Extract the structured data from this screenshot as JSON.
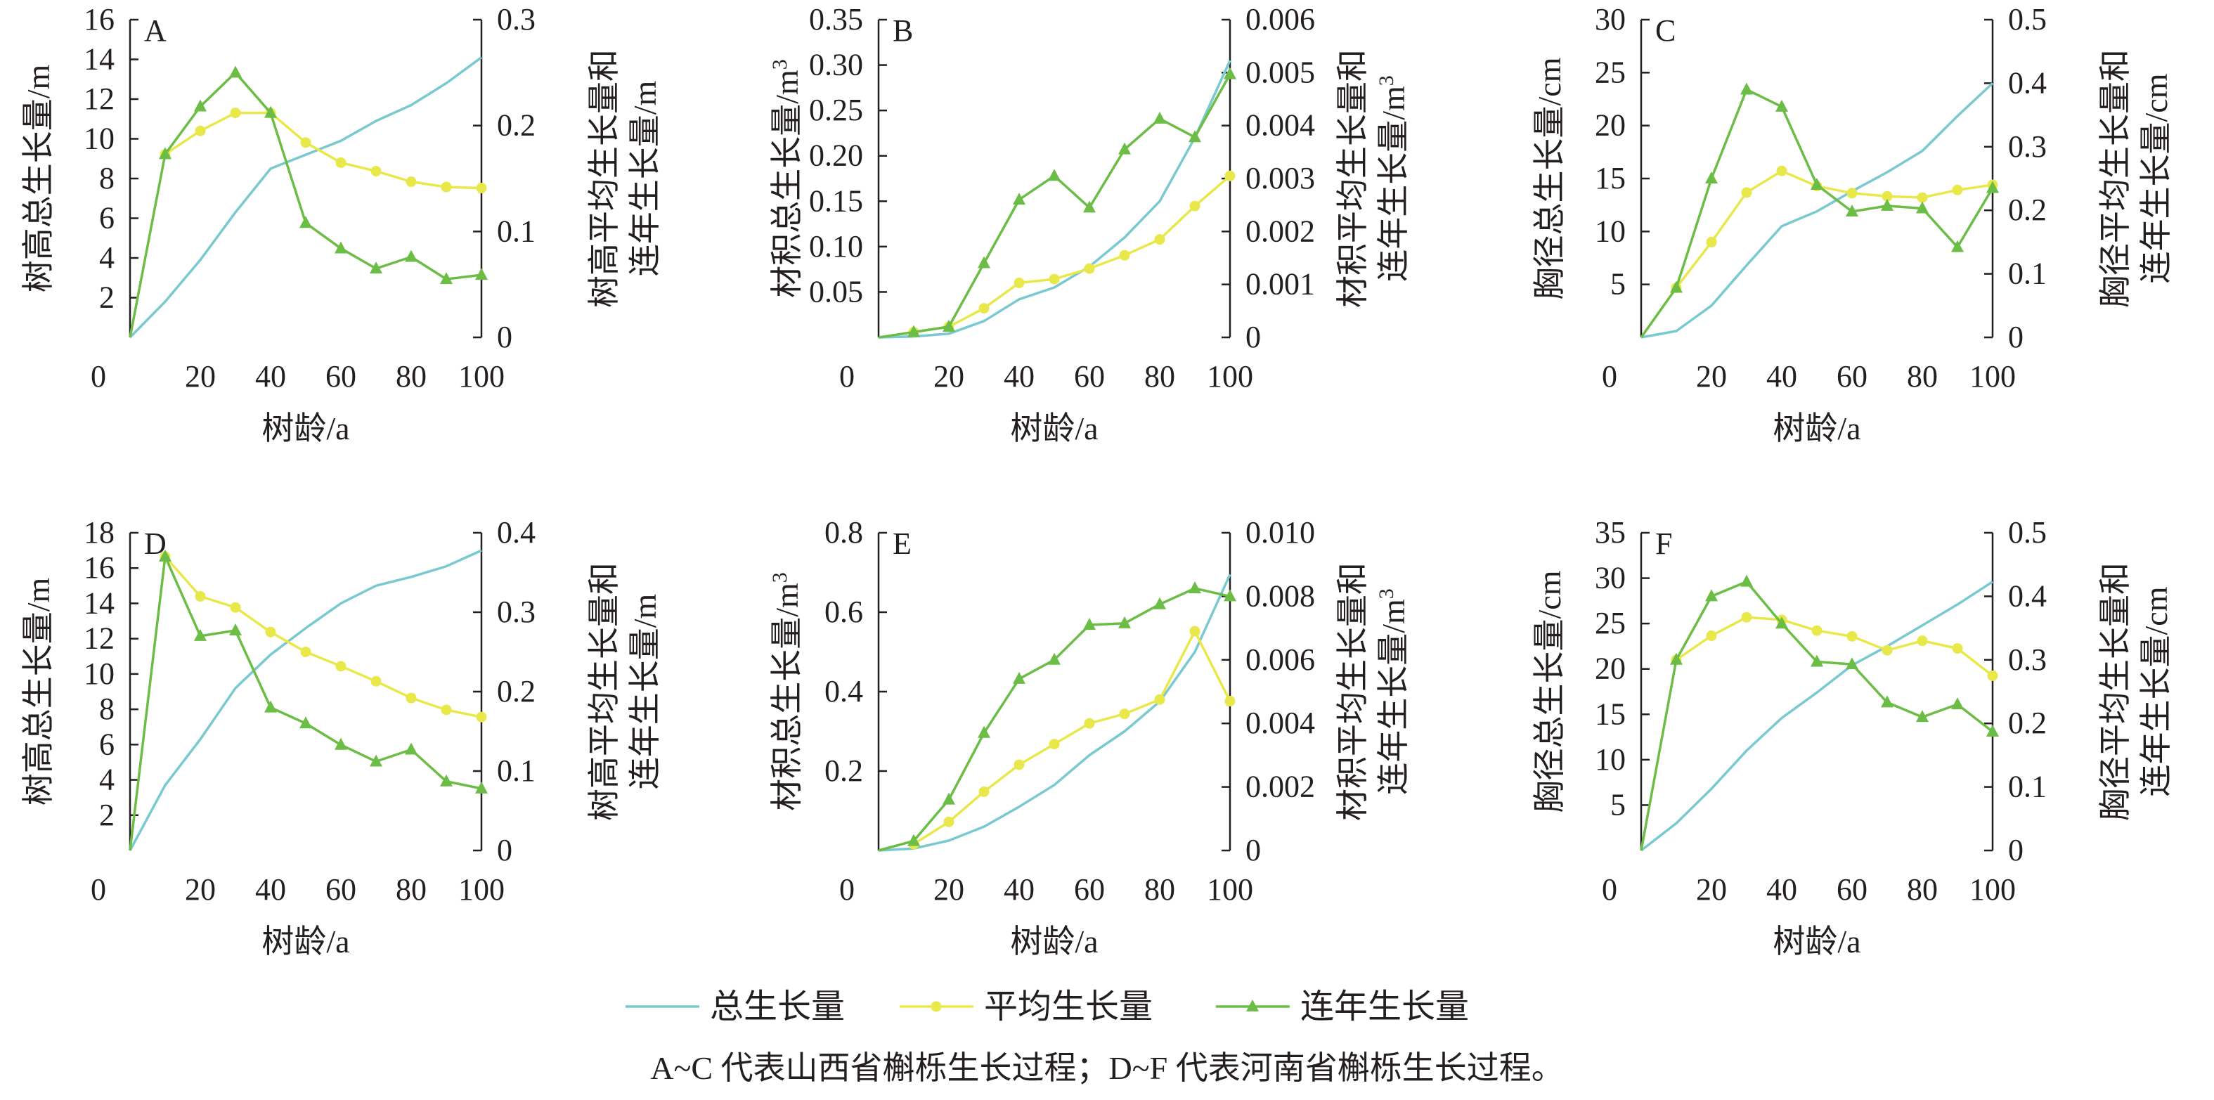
{
  "figure": {
    "caption": "A~C 代表山西省槲栎生长过程；D~F 代表河南省槲栎生长过程。",
    "legend": [
      {
        "key": "total",
        "label": "总生长量",
        "color": "#79c9d0",
        "marker": "none"
      },
      {
        "key": "mean",
        "label": "平均生长量",
        "color": "#e8e84a",
        "marker": "circle"
      },
      {
        "key": "annual",
        "label": "连年生长量",
        "color": "#6bbd45",
        "marker": "triangle"
      }
    ]
  },
  "chart_data": [
    {
      "panel": "A",
      "type": "line",
      "x_label": "树龄/a",
      "x_range": [
        0,
        100
      ],
      "x_ticks": [
        0,
        20,
        40,
        60,
        80,
        100
      ],
      "left_axis": {
        "label": "树高总生长量/m",
        "range": [
          0,
          16
        ],
        "ticks": [
          2,
          4,
          6,
          8,
          10,
          12,
          14,
          16
        ],
        "tick_labels": [
          "2",
          "4",
          "6",
          "8",
          "10",
          "12",
          "14",
          "16"
        ]
      },
      "right_axis": {
        "label_lines": [
          "树高平均生长量和",
          "连年生长量/m"
        ],
        "range": [
          0,
          0.3
        ],
        "ticks": [
          0,
          0.1,
          0.2,
          0.3
        ],
        "tick_labels": [
          "0",
          "0.1",
          "0.2",
          "0.3"
        ]
      },
      "series": [
        {
          "key": "total",
          "name": "总生长量",
          "axis": "left",
          "x": [
            0,
            10,
            20,
            30,
            40,
            50,
            60,
            70,
            80,
            90,
            100
          ],
          "y": [
            0,
            1.8,
            3.9,
            6.3,
            8.5,
            9.2,
            9.9,
            10.9,
            11.7,
            12.8,
            14.1
          ]
        },
        {
          "key": "mean",
          "name": "平均生长量",
          "axis": "right",
          "x": [
            10,
            20,
            30,
            40,
            50,
            60,
            70,
            80,
            90,
            100
          ],
          "y": [
            0.173,
            0.195,
            0.212,
            0.212,
            0.184,
            0.165,
            0.157,
            0.147,
            0.142,
            0.141
          ]
        },
        {
          "key": "annual",
          "name": "连年生长量",
          "axis": "right",
          "x": [
            0,
            10,
            20,
            30,
            40,
            50,
            60,
            70,
            80,
            90,
            100
          ],
          "y": [
            0,
            0.173,
            0.218,
            0.25,
            0.212,
            0.108,
            0.084,
            0.065,
            0.076,
            0.055,
            0.059
          ]
        }
      ]
    },
    {
      "panel": "B",
      "type": "line",
      "x_label": "树龄/a",
      "x_range": [
        0,
        100
      ],
      "x_ticks": [
        0,
        20,
        40,
        60,
        80,
        100
      ],
      "left_axis": {
        "label": "材积总生长量/m",
        "label_superscript": "3",
        "range": [
          0,
          0.35
        ],
        "ticks": [
          0.05,
          0.1,
          0.15,
          0.2,
          0.25,
          0.3,
          0.35
        ],
        "tick_labels": [
          "0.05",
          "0.10",
          "0.15",
          "0.20",
          "0.25",
          "0.30",
          "0.35"
        ]
      },
      "right_axis": {
        "label_lines": [
          "材积平均生长量和",
          "连年生长量/m"
        ],
        "label_superscript": "3",
        "range": [
          0,
          0.006
        ],
        "ticks": [
          0,
          0.001,
          0.002,
          0.003,
          0.004,
          0.005,
          0.006
        ],
        "tick_labels": [
          "0",
          "0.001",
          "0.002",
          "0.003",
          "0.004",
          "0.005",
          "0.006"
        ]
      },
      "series": [
        {
          "key": "total",
          "name": "总生长量",
          "axis": "left",
          "x": [
            0,
            10,
            20,
            30,
            40,
            50,
            60,
            70,
            80,
            90,
            100
          ],
          "y": [
            0,
            0.001,
            0.004,
            0.018,
            0.042,
            0.055,
            0.078,
            0.11,
            0.15,
            0.22,
            0.305
          ]
        },
        {
          "key": "mean",
          "name": "平均生长量",
          "axis": "right",
          "x": [
            10,
            20,
            30,
            40,
            50,
            60,
            70,
            80,
            90,
            100
          ],
          "y": [
            0.0001,
            0.0002,
            0.00055,
            0.00103,
            0.0011,
            0.0013,
            0.00155,
            0.00185,
            0.00248,
            0.00305
          ]
        },
        {
          "key": "annual",
          "name": "连年生长量",
          "axis": "right",
          "x": [
            0,
            10,
            20,
            30,
            40,
            50,
            60,
            70,
            80,
            90,
            100
          ],
          "y": [
            0,
            0.0001,
            0.0002,
            0.0014,
            0.0026,
            0.00305,
            0.00245,
            0.00355,
            0.00413,
            0.00378,
            0.00497
          ]
        }
      ]
    },
    {
      "panel": "C",
      "type": "line",
      "x_label": "树龄/a",
      "x_range": [
        0,
        100
      ],
      "x_ticks": [
        0,
        20,
        40,
        60,
        80,
        100
      ],
      "left_axis": {
        "label": "胸径总生长量/cm",
        "range": [
          0,
          30
        ],
        "ticks": [
          5,
          10,
          15,
          20,
          25,
          30
        ],
        "tick_labels": [
          "5",
          "10",
          "15",
          "20",
          "25",
          "30"
        ]
      },
      "right_axis": {
        "label_lines": [
          "胸径平均生长量和",
          "连年生长量/cm"
        ],
        "range": [
          0,
          0.5
        ],
        "ticks": [
          0,
          0.1,
          0.2,
          0.3,
          0.4,
          0.5
        ],
        "tick_labels": [
          "0",
          "0.1",
          "0.2",
          "0.3",
          "0.4",
          "0.5"
        ]
      },
      "series": [
        {
          "key": "total",
          "name": "总生长量",
          "axis": "left",
          "x": [
            0,
            10,
            20,
            30,
            40,
            50,
            60,
            70,
            80,
            90,
            100
          ],
          "y": [
            0,
            0.6,
            3,
            6.8,
            10.5,
            11.9,
            13.8,
            15.6,
            17.6,
            20.9,
            24
          ]
        },
        {
          "key": "mean",
          "name": "平均生长量",
          "axis": "right",
          "x": [
            10,
            20,
            30,
            40,
            50,
            60,
            70,
            80,
            90,
            100
          ],
          "y": [
            0.078,
            0.15,
            0.228,
            0.262,
            0.238,
            0.227,
            0.222,
            0.22,
            0.232,
            0.24
          ]
        },
        {
          "key": "annual",
          "name": "连年生长量",
          "axis": "right",
          "x": [
            0,
            10,
            20,
            30,
            40,
            50,
            60,
            70,
            80,
            90,
            100
          ],
          "y": [
            0,
            0.078,
            0.25,
            0.39,
            0.363,
            0.24,
            0.198,
            0.207,
            0.203,
            0.142,
            0.235
          ]
        }
      ]
    },
    {
      "panel": "D",
      "type": "line",
      "x_label": "树龄/a",
      "x_range": [
        0,
        100
      ],
      "x_ticks": [
        0,
        20,
        40,
        60,
        80,
        100
      ],
      "left_axis": {
        "label": "树高总生长量/m",
        "range": [
          0,
          18
        ],
        "ticks": [
          2,
          4,
          6,
          8,
          10,
          12,
          14,
          16,
          18
        ],
        "tick_labels": [
          "2",
          "4",
          "6",
          "8",
          "10",
          "12",
          "14",
          "16",
          "18"
        ]
      },
      "right_axis": {
        "label_lines": [
          "树高平均生长量和",
          "连年生长量/m"
        ],
        "range": [
          0,
          0.4
        ],
        "ticks": [
          0,
          0.1,
          0.2,
          0.3,
          0.4
        ],
        "tick_labels": [
          "0",
          "0.1",
          "0.2",
          "0.3",
          "0.4"
        ]
      },
      "series": [
        {
          "key": "total",
          "name": "总生长量",
          "axis": "left",
          "x": [
            0,
            10,
            20,
            30,
            40,
            50,
            60,
            70,
            80,
            90,
            100
          ],
          "y": [
            0,
            3.7,
            6.3,
            9.2,
            11.1,
            12.6,
            14,
            15,
            15.5,
            16.1,
            17
          ]
        },
        {
          "key": "mean",
          "name": "平均生长量",
          "axis": "right",
          "x": [
            10,
            20,
            30,
            40,
            50,
            60,
            70,
            80,
            90,
            100
          ],
          "y": [
            0.37,
            0.32,
            0.306,
            0.275,
            0.25,
            0.232,
            0.213,
            0.192,
            0.177,
            0.168
          ]
        },
        {
          "key": "annual",
          "name": "连年生长量",
          "axis": "right",
          "x": [
            0,
            10,
            20,
            30,
            40,
            50,
            60,
            70,
            80,
            90,
            100
          ],
          "y": [
            0,
            0.37,
            0.27,
            0.277,
            0.18,
            0.16,
            0.133,
            0.112,
            0.127,
            0.087,
            0.078
          ]
        }
      ]
    },
    {
      "panel": "E",
      "type": "line",
      "x_label": "树龄/a",
      "x_range": [
        0,
        100
      ],
      "x_ticks": [
        0,
        20,
        40,
        60,
        80,
        100
      ],
      "left_axis": {
        "label": "材积总生长量/m",
        "label_superscript": "3",
        "range": [
          0,
          0.8
        ],
        "ticks": [
          0.2,
          0.4,
          0.6,
          0.8
        ],
        "tick_labels": [
          "0.2",
          "0.4",
          "0.6",
          "0.8"
        ]
      },
      "right_axis": {
        "label_lines": [
          "材积平均生长量和",
          "连年生长量/m"
        ],
        "label_superscript": "3",
        "range": [
          0,
          0.01
        ],
        "ticks": [
          0,
          0.002,
          0.004,
          0.006,
          0.008,
          0.01
        ],
        "tick_labels": [
          "0",
          "0.002",
          "0.004",
          "0.006",
          "0.008",
          "0.010"
        ]
      },
      "series": [
        {
          "key": "total",
          "name": "总生长量",
          "axis": "left",
          "x": [
            0,
            10,
            20,
            30,
            40,
            50,
            60,
            70,
            80,
            90,
            100
          ],
          "y": [
            0,
            0.005,
            0.025,
            0.06,
            0.11,
            0.165,
            0.24,
            0.3,
            0.375,
            0.5,
            0.695
          ]
        },
        {
          "key": "mean",
          "name": "平均生长量",
          "axis": "right",
          "x": [
            10,
            20,
            30,
            40,
            50,
            60,
            70,
            80,
            90,
            100
          ],
          "y": [
            0.0002,
            0.0009,
            0.00185,
            0.0027,
            0.00335,
            0.004,
            0.0043,
            0.00475,
            0.0069,
            0.0047
          ]
        },
        {
          "key": "annual",
          "name": "连年生长量",
          "axis": "right",
          "x": [
            0,
            10,
            20,
            30,
            40,
            50,
            60,
            70,
            80,
            90,
            100
          ],
          "y": [
            0,
            0.0003,
            0.0016,
            0.0037,
            0.0054,
            0.006,
            0.0071,
            0.00715,
            0.00775,
            0.00825,
            0.008
          ]
        }
      ]
    },
    {
      "panel": "F",
      "type": "line",
      "x_label": "树龄/a",
      "x_range": [
        0,
        100
      ],
      "x_ticks": [
        0,
        20,
        40,
        60,
        80,
        100
      ],
      "left_axis": {
        "label": "胸径总生长量/cm",
        "range": [
          0,
          35
        ],
        "ticks": [
          5,
          10,
          15,
          20,
          25,
          30,
          35
        ],
        "tick_labels": [
          "5",
          "10",
          "15",
          "20",
          "25",
          "30",
          "35"
        ]
      },
      "right_axis": {
        "label_lines": [
          "胸径平均生长量和",
          "连年生长量/cm"
        ],
        "range": [
          0,
          0.5
        ],
        "ticks": [
          0,
          0.1,
          0.2,
          0.3,
          0.4,
          0.5
        ],
        "tick_labels": [
          "0",
          "0.1",
          "0.2",
          "0.3",
          "0.4",
          "0.5"
        ]
      },
      "series": [
        {
          "key": "total",
          "name": "总生长量",
          "axis": "left",
          "x": [
            0,
            10,
            20,
            30,
            40,
            50,
            60,
            70,
            80,
            90,
            100
          ],
          "y": [
            0,
            3,
            6.8,
            11,
            14.6,
            17.4,
            20.4,
            22.5,
            24.8,
            27.1,
            29.6
          ]
        },
        {
          "key": "mean",
          "name": "平均生长量",
          "axis": "right",
          "x": [
            10,
            20,
            30,
            40,
            50,
            60,
            70,
            80,
            90,
            100
          ],
          "y": [
            0.3,
            0.338,
            0.367,
            0.363,
            0.346,
            0.337,
            0.315,
            0.33,
            0.318,
            0.275
          ]
        },
        {
          "key": "annual",
          "name": "连年生长量",
          "axis": "right",
          "x": [
            0,
            10,
            20,
            30,
            40,
            50,
            60,
            70,
            80,
            90,
            100
          ],
          "y": [
            0,
            0.3,
            0.4,
            0.423,
            0.357,
            0.297,
            0.293,
            0.233,
            0.21,
            0.23,
            0.187
          ]
        }
      ]
    }
  ]
}
